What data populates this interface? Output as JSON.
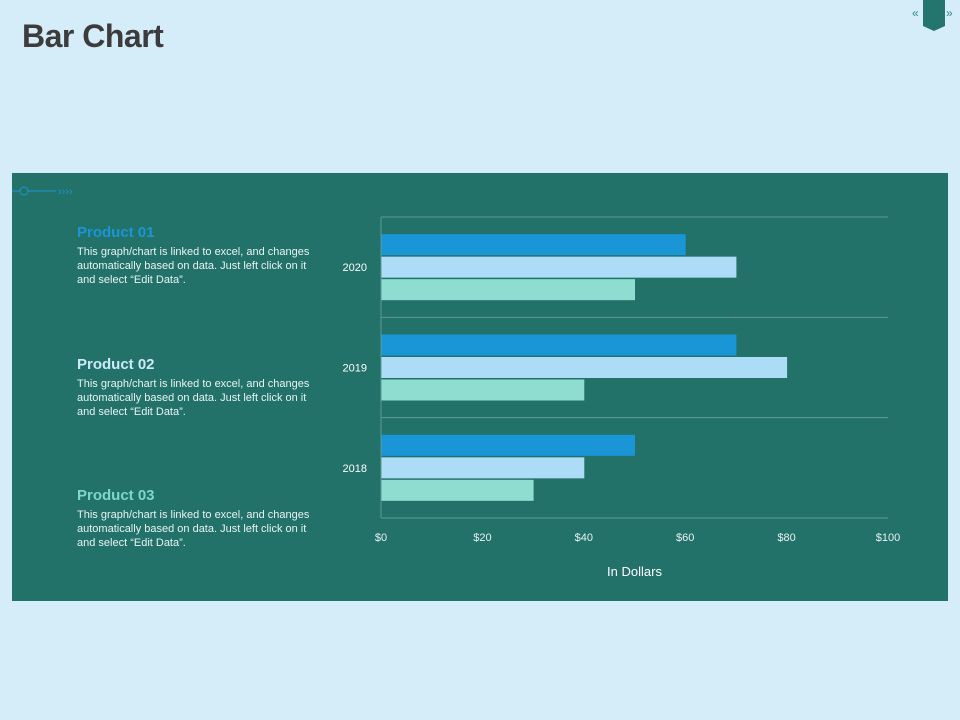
{
  "page": {
    "title": "Bar Chart"
  },
  "nav": {
    "prev_label": "«",
    "next_label": "»"
  },
  "decor": {
    "chevrons": "››››"
  },
  "products": [
    {
      "name": "Product 01",
      "description": "This graph/chart is linked to excel, and changes automatically based on data. Just left click on it and select “Edit Data”."
    },
    {
      "name": "Product 02",
      "description": "This graph/chart is linked to excel, and changes automatically based on data. Just left click on it and select “Edit Data”."
    },
    {
      "name": "Product 03",
      "description": "This graph/chart is linked to excel, and changes automatically based on data. Just left click on it and select “Edit Data”."
    }
  ],
  "chart_data": {
    "type": "bar",
    "orientation": "horizontal",
    "categories": [
      "2020",
      "2019",
      "2018"
    ],
    "series": [
      {
        "name": "Product 01",
        "values": [
          60,
          70,
          50
        ],
        "color": "#1a95d6"
      },
      {
        "name": "Product 02",
        "values": [
          70,
          80,
          40
        ],
        "color": "#addcf7"
      },
      {
        "name": "Product 03",
        "values": [
          50,
          40,
          30
        ],
        "color": "#8fdcd0"
      }
    ],
    "xlim": [
      0,
      100
    ],
    "xticks": [
      0,
      20,
      40,
      60,
      80,
      100
    ],
    "xtick_labels": [
      "$0",
      "$20",
      "$40",
      "$60",
      "$80",
      "$100"
    ],
    "xlabel": "In Dollars",
    "ylabel": "",
    "title": "",
    "grid": true,
    "colors": {
      "axis": "#5f9b95",
      "grid": "#5f9b95",
      "text": "#ffffff",
      "tick_text": "#e6f2f2"
    }
  },
  "colors": {
    "background": "#d5ecf9",
    "panel": "#22726a",
    "title": "#3c3c3c",
    "accent": "#2f8a86"
  }
}
